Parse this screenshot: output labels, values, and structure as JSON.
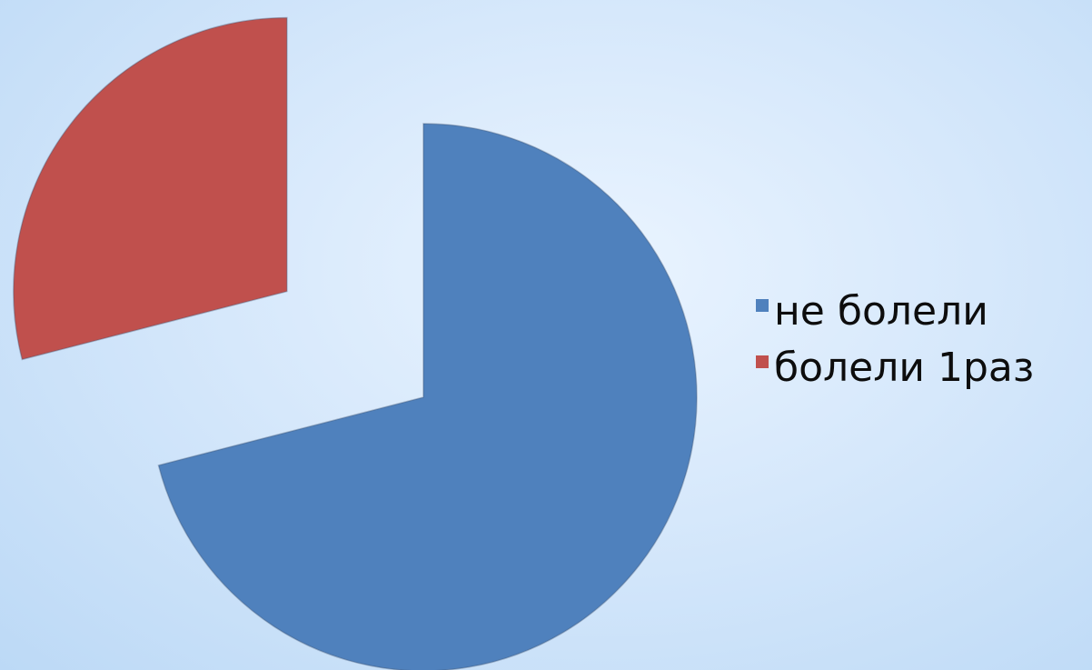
{
  "chart_data": {
    "type": "pie",
    "exploded": true,
    "start_angle_deg": 0,
    "direction": "clockwise",
    "slices": [
      {
        "label": "не болели",
        "value": 71,
        "color": "#4f81bd"
      },
      {
        "label": "болели 1раз",
        "value": 29,
        "color": "#c0504d"
      }
    ],
    "legend_position": "right"
  }
}
